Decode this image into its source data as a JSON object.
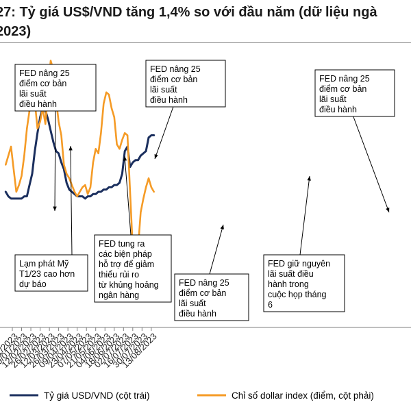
{
  "title_lines": [
    "27: Tỷ giá US$/VND tăng 1,4% so với đầu năm (dữ liệu ngà",
    "2023)"
  ],
  "colors": {
    "usdvnd": "#1b2f5e",
    "dxy": "#f59b26",
    "axis": "#7f7f7f"
  },
  "chart_data": {
    "type": "line",
    "x_tick_labels": [
      "15/01/2023",
      "29/01/2023",
      "12/02/2023",
      "26/02/2023",
      "12/03/2023",
      "26/03/2023",
      "09/04/2023",
      "23/04/2023",
      "07/05/2023",
      "21/05/2023",
      "04/06/2023",
      "18/06/2023",
      "02/07/2023",
      "16/07/2023",
      "30/07/2023",
      "13/08/2023"
    ],
    "series": [
      {
        "name": "Tỷ giá USD/VND (cột trái)",
        "axis": "left",
        "color": "#1b2f5e",
        "x": [
          "05/01/2023",
          "09/01/2023",
          "13/01/2023",
          "17/01/2023",
          "21/01/2023",
          "25/01/2023",
          "29/01/2023",
          "02/02/2023",
          "06/02/2023",
          "10/02/2023",
          "14/02/2023",
          "18/02/2023",
          "22/02/2023",
          "26/02/2023",
          "02/03/2023",
          "06/03/2023",
          "10/03/2023",
          "14/03/2023",
          "18/03/2023",
          "22/03/2023",
          "26/03/2023",
          "30/03/2023",
          "03/04/2023",
          "07/04/2023",
          "11/04/2023",
          "15/04/2023",
          "19/04/2023",
          "23/04/2023",
          "27/04/2023",
          "01/05/2023",
          "05/05/2023",
          "09/05/2023",
          "13/05/2023",
          "17/05/2023",
          "21/05/2023",
          "25/05/2023",
          "29/05/2023",
          "02/06/2023",
          "06/06/2023",
          "10/06/2023",
          "14/06/2023",
          "18/06/2023",
          "22/06/2023",
          "26/06/2023",
          "30/06/2023",
          "04/07/2023",
          "08/07/2023",
          "12/07/2023",
          "16/07/2023",
          "20/07/2023",
          "24/07/2023",
          "28/07/2023",
          "01/08/2023",
          "05/08/2023",
          "09/08/2023",
          "13/08/2023",
          "17/08/2023"
        ],
        "values": [
          0.6,
          0.58,
          0.57,
          0.57,
          0.57,
          0.57,
          0.57,
          0.58,
          0.58,
          0.63,
          0.68,
          0.78,
          0.86,
          0.93,
          0.97,
          0.96,
          0.92,
          0.87,
          0.82,
          0.78,
          0.77,
          0.73,
          0.7,
          0.64,
          0.61,
          0.6,
          0.59,
          0.58,
          0.58,
          0.58,
          0.57,
          0.58,
          0.58,
          0.59,
          0.59,
          0.6,
          0.6,
          0.61,
          0.61,
          0.62,
          0.62,
          0.63,
          0.63,
          0.64,
          0.68,
          0.78,
          0.8,
          0.71,
          0.73,
          0.74,
          0.74,
          0.76,
          0.77,
          0.78,
          0.84,
          0.85,
          0.85
        ]
      },
      {
        "name": "Chỉ số dollar index (điểm, cột phải)",
        "axis": "right",
        "color": "#f59b26",
        "x": [
          "05/01/2023",
          "09/01/2023",
          "13/01/2023",
          "17/01/2023",
          "21/01/2023",
          "25/01/2023",
          "29/01/2023",
          "02/02/2023",
          "06/02/2023",
          "10/02/2023",
          "14/02/2023",
          "18/02/2023",
          "22/02/2023",
          "26/02/2023",
          "02/03/2023",
          "06/03/2023",
          "10/03/2023",
          "14/03/2023",
          "18/03/2023",
          "22/03/2023",
          "26/03/2023",
          "30/03/2023",
          "03/04/2023",
          "07/04/2023",
          "11/04/2023",
          "15/04/2023",
          "19/04/2023",
          "23/04/2023",
          "27/04/2023",
          "01/05/2023",
          "05/05/2023",
          "09/05/2023",
          "13/05/2023",
          "17/05/2023",
          "21/05/2023",
          "25/05/2023",
          "29/05/2023",
          "02/06/2023",
          "06/06/2023",
          "10/06/2023",
          "14/06/2023",
          "18/06/2023",
          "22/06/2023",
          "26/06/2023",
          "30/06/2023",
          "04/07/2023",
          "08/07/2023",
          "12/07/2023",
          "16/07/2023",
          "20/07/2023",
          "24/07/2023",
          "28/07/2023",
          "01/08/2023",
          "05/08/2023",
          "09/08/2023",
          "13/08/2023",
          "17/08/2023"
        ],
        "values": [
          0.72,
          0.76,
          0.8,
          0.7,
          0.6,
          0.63,
          0.67,
          0.76,
          0.88,
          0.96,
          0.97,
          1.0,
          0.88,
          0.91,
          0.97,
          0.9,
          1.06,
          1.18,
          1.14,
          1.01,
          0.91,
          0.85,
          0.72,
          0.68,
          0.66,
          0.63,
          0.6,
          0.58,
          0.6,
          0.62,
          0.63,
          0.59,
          0.62,
          0.73,
          0.79,
          0.77,
          0.86,
          0.99,
          1.04,
          1.03,
          0.97,
          0.93,
          0.81,
          0.79,
          0.83,
          0.86,
          0.85,
          0.6,
          0.35,
          0.28,
          0.35,
          0.51,
          0.57,
          0.62,
          0.66,
          0.62,
          0.6
        ]
      }
    ],
    "annotations": [
      "FED nâng 25 điểm cơ bản lãi suất điều hành",
      "FED nâng 25 điểm cơ bản lãi suất điều hành",
      "FED nâng 25 điểm cơ bản lãi suất điều hành",
      "Lạm phát Mỹ T1/23 cao hơn dự báo",
      "FED tung ra các biện pháp hỗ trợ để giảm thiểu rủi ro từ khủng hoảng ngân hàng",
      "FED nâng 25 điểm cơ bản lãi suất điều hành",
      "FED giữ nguyên lãi suất điều hành trong cuộc họp tháng 6"
    ],
    "legend_position": "bottom",
    "grid": false
  }
}
